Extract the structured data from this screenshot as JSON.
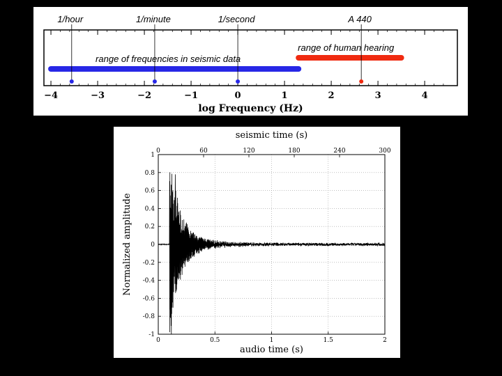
{
  "chart_data": [
    {
      "type": "scatter",
      "xlabel": "log Frequency (Hz)",
      "xlim": [
        -4.15,
        4.7
      ],
      "ticks": [
        "−4",
        "−3",
        "−2",
        "−1",
        "0",
        "1",
        "2",
        "3",
        "4"
      ],
      "tick_values": [
        -4,
        -3,
        -2,
        -1,
        0,
        1,
        2,
        3,
        4
      ],
      "ranges": [
        {
          "label": "range of frequencies in seismic data",
          "from": -4.0,
          "to": 1.3,
          "color": "#2727e6"
        },
        {
          "label": "range of human hearing",
          "from": 1.3,
          "to": 3.5,
          "color": "#f02a10"
        }
      ],
      "points": [
        {
          "label": "1/hour",
          "x": -3.556,
          "color": "#2727e6"
        },
        {
          "label": "1/minute",
          "x": -1.778,
          "color": "#2727e6"
        },
        {
          "label": "1/second",
          "x": 0.0,
          "color": "#2727e6"
        },
        {
          "label": "A 440",
          "x": 2.643,
          "color": "#f02a10"
        }
      ]
    },
    {
      "type": "line",
      "title": "seismic time (s)",
      "xlabel": "audio time (s)",
      "ylabel": "Normalized amplitude",
      "xlim": [
        0,
        2
      ],
      "ylim": [
        -1,
        1
      ],
      "x_ticks": [
        "0",
        "0.5",
        "1",
        "1.5",
        "2"
      ],
      "x_tick_values": [
        0,
        0.5,
        1,
        1.5,
        2
      ],
      "top_ticks": [
        "0",
        "60",
        "120",
        "180",
        "240",
        "300"
      ],
      "top_tick_values": [
        0,
        60,
        120,
        180,
        240,
        300
      ],
      "y_ticks": [
        "1",
        "0.8",
        "0.6",
        "0.4",
        "0.2",
        "0",
        "-0.2",
        "-0.4",
        "-0.6",
        "-0.8",
        "-1"
      ],
      "y_tick_values": [
        1,
        0.8,
        0.6,
        0.4,
        0.2,
        0,
        -0.2,
        -0.4,
        -0.6,
        -0.8,
        -1
      ],
      "grid": true,
      "waveform": {
        "onset_s": 0.1,
        "peak_s": 0.15,
        "peak_amplitude": 0.78,
        "min_amplitude": -1.0,
        "decay_by_s": 0.5,
        "noise_amplitude": 0.015
      }
    }
  ]
}
